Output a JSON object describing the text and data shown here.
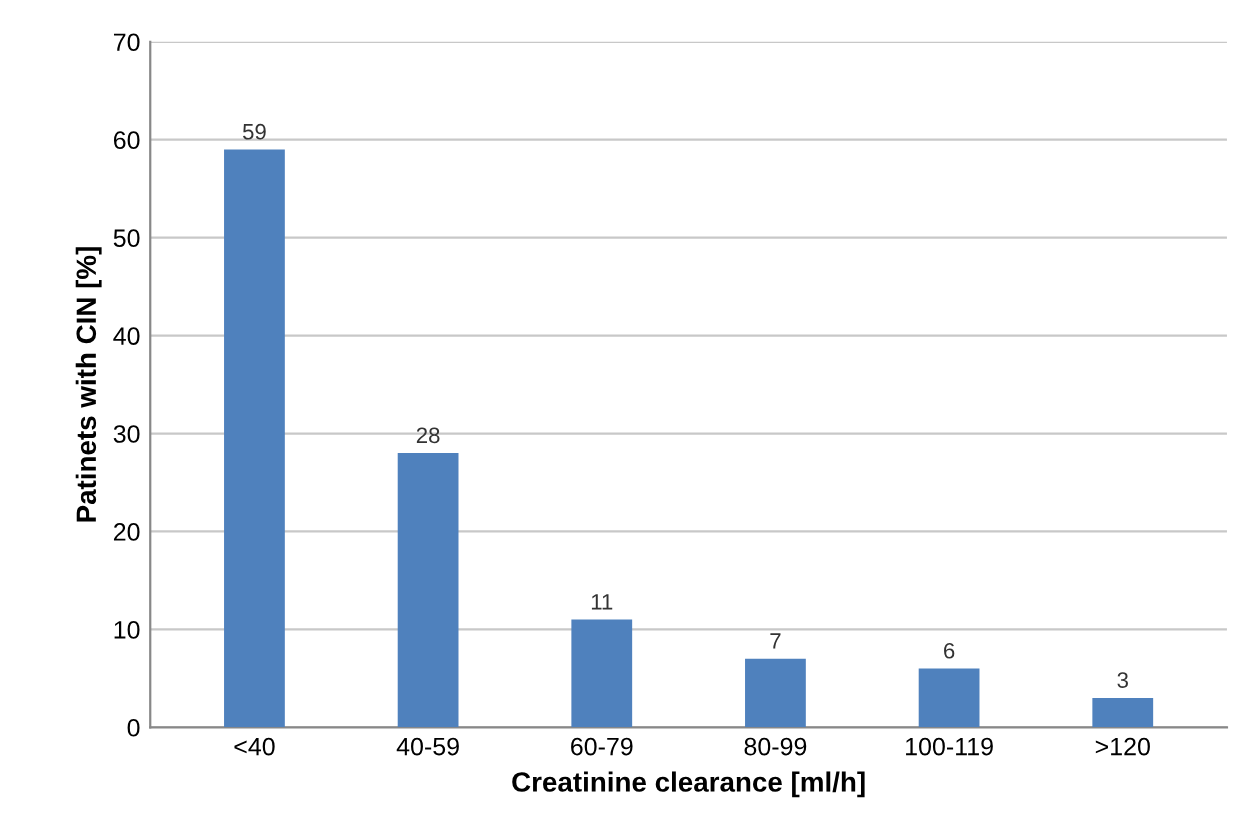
{
  "chart_data": {
    "type": "bar",
    "xlabel": "Creatinine clearance [ml/h]",
    "ylabel": "Patinets with CIN [%]",
    "categories": [
      "<40",
      "40-59",
      "60-79",
      "80-99",
      "100-119",
      ">120"
    ],
    "values": [
      59,
      28,
      11,
      7,
      6,
      3
    ],
    "color": "#4f81bd",
    "ylim": [
      0,
      70
    ],
    "yticks": [
      0,
      10,
      20,
      30,
      40,
      50,
      60,
      70
    ],
    "grid": "y",
    "data_labels": true
  }
}
